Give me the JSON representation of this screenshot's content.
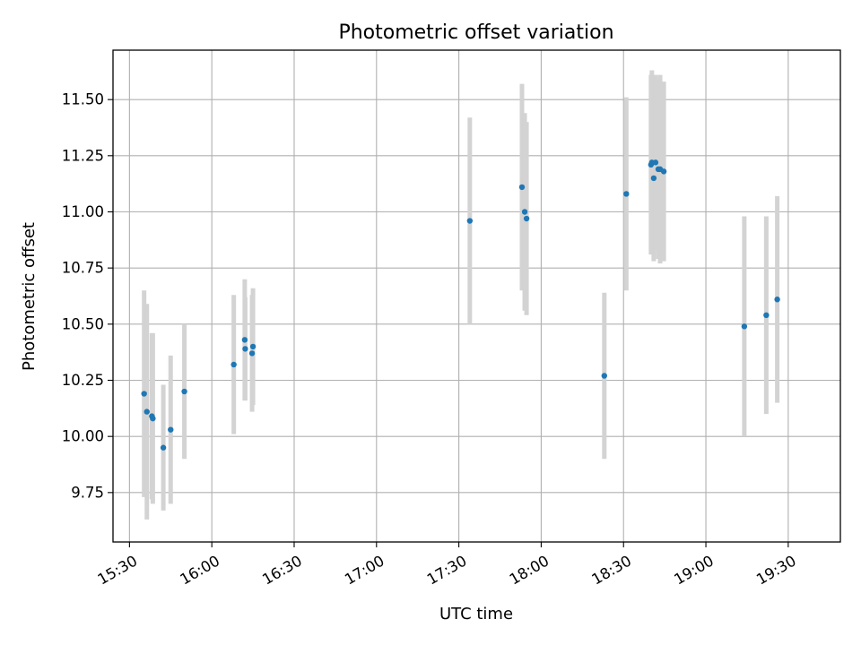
{
  "chart_data": {
    "type": "scatter",
    "title": "Photometric offset variation",
    "xlabel": "UTC time",
    "ylabel": "Photometric offset",
    "x_ticks": [
      "15:30",
      "16:00",
      "16:30",
      "17:00",
      "17:30",
      "18:00",
      "18:30",
      "19:00",
      "19:30"
    ],
    "y_ticks": [
      "9.75",
      "10.00",
      "10.25",
      "10.50",
      "10.75",
      "11.00",
      "11.25",
      "11.50"
    ],
    "xlim": [
      "15:24",
      "19:49"
    ],
    "ylim": [
      9.53,
      11.72
    ],
    "grid": true,
    "colors": {
      "point": "#1f77b4",
      "errorbar": "#d3d3d3",
      "grid": "#b0b0b0"
    },
    "points": [
      {
        "t": "15:35:20",
        "y": 10.19,
        "err": 0.46
      },
      {
        "t": "15:36:20",
        "y": 10.11,
        "err": 0.48
      },
      {
        "t": "15:38:10",
        "y": 10.09,
        "err": 0.37
      },
      {
        "t": "15:38:30",
        "y": 10.08,
        "err": 0.38
      },
      {
        "t": "15:42:20",
        "y": 9.95,
        "err": 0.28
      },
      {
        "t": "15:45:00",
        "y": 10.03,
        "err": 0.33
      },
      {
        "t": "15:50:00",
        "y": 10.2,
        "err": 0.3
      },
      {
        "t": "16:08:00",
        "y": 10.32,
        "err": 0.31
      },
      {
        "t": "16:12:00",
        "y": 10.43,
        "err": 0.27
      },
      {
        "t": "16:12:10",
        "y": 10.39,
        "err": 0.23
      },
      {
        "t": "16:14:40",
        "y": 10.37,
        "err": 0.26
      },
      {
        "t": "16:15:00",
        "y": 10.4,
        "err": 0.26
      },
      {
        "t": "17:34:00",
        "y": 10.96,
        "err": 0.46
      },
      {
        "t": "17:53:00",
        "y": 11.11,
        "err": 0.46
      },
      {
        "t": "17:54:00",
        "y": 11.0,
        "err": 0.44
      },
      {
        "t": "17:54:40",
        "y": 10.97,
        "err": 0.43
      },
      {
        "t": "18:23:00",
        "y": 10.27,
        "err": 0.37
      },
      {
        "t": "18:31:00",
        "y": 11.08,
        "err": 0.43
      },
      {
        "t": "18:40:00",
        "y": 11.21,
        "err": 0.4
      },
      {
        "t": "18:40:20",
        "y": 11.22,
        "err": 0.41
      },
      {
        "t": "18:41:00",
        "y": 11.15,
        "err": 0.37
      },
      {
        "t": "18:41:40",
        "y": 11.22,
        "err": 0.39
      },
      {
        "t": "18:42:40",
        "y": 11.19,
        "err": 0.4
      },
      {
        "t": "18:43:20",
        "y": 11.19,
        "err": 0.42
      },
      {
        "t": "18:44:40",
        "y": 11.18,
        "err": 0.4
      },
      {
        "t": "19:14:00",
        "y": 10.49,
        "err": 0.49
      },
      {
        "t": "19:22:00",
        "y": 10.54,
        "err": 0.44
      },
      {
        "t": "19:26:00",
        "y": 10.61,
        "err": 0.46
      }
    ]
  }
}
